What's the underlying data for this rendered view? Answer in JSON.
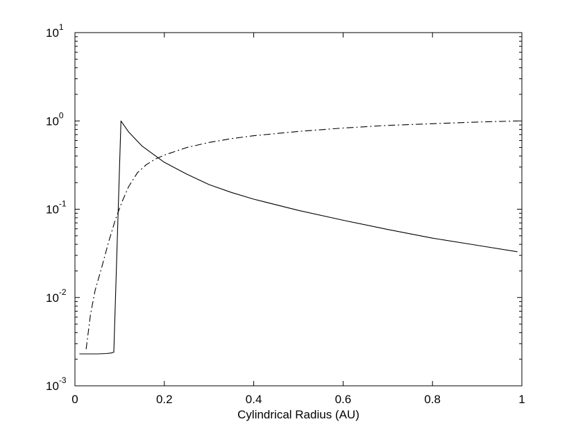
{
  "chart_data": {
    "type": "line",
    "title": "",
    "xlabel": "Cylindrical Radius (AU)",
    "ylabel": "",
    "xlim": [
      0,
      1
    ],
    "ylim": [
      0.001,
      10
    ],
    "yscale": "log",
    "grid": false,
    "legend": "none",
    "xticks": [
      0,
      0.2,
      0.4,
      0.6,
      0.8,
      1
    ],
    "xtick_labels": [
      "0",
      "0.2",
      "0.4",
      "0.6",
      "0.8",
      "1"
    ],
    "yticks": [
      0.001,
      0.01,
      0.1,
      1,
      10
    ],
    "ytick_labels": [
      {
        "base": "10",
        "exp": "-3"
      },
      {
        "base": "10",
        "exp": "-2"
      },
      {
        "base": "10",
        "exp": "-1"
      },
      {
        "base": "10",
        "exp": "0"
      },
      {
        "base": "10",
        "exp": "1"
      }
    ],
    "series": [
      {
        "style": "solid",
        "color": "#000000",
        "x": [
          0.01,
          0.03,
          0.05,
          0.07,
          0.08,
          0.087,
          0.103,
          0.12,
          0.15,
          0.2,
          0.25,
          0.3,
          0.35,
          0.4,
          0.5,
          0.6,
          0.7,
          0.8,
          0.9,
          0.99
        ],
        "y": [
          0.0023,
          0.0023,
          0.0023,
          0.00232,
          0.00235,
          0.0024,
          1.0,
          0.75,
          0.52,
          0.34,
          0.25,
          0.19,
          0.155,
          0.13,
          0.097,
          0.075,
          0.059,
          0.047,
          0.039,
          0.033
        ]
      },
      {
        "style": "dash-dot",
        "color": "#000000",
        "x": [
          0.025,
          0.035,
          0.045,
          0.06,
          0.075,
          0.09,
          0.105,
          0.12,
          0.14,
          0.16,
          0.18,
          0.2,
          0.25,
          0.3,
          0.35,
          0.4,
          0.5,
          0.6,
          0.7,
          0.8,
          0.9,
          0.99
        ],
        "y": [
          0.0026,
          0.0065,
          0.012,
          0.022,
          0.042,
          0.075,
          0.12,
          0.18,
          0.26,
          0.32,
          0.37,
          0.41,
          0.5,
          0.57,
          0.63,
          0.68,
          0.76,
          0.83,
          0.89,
          0.93,
          0.97,
          1.0
        ]
      }
    ]
  }
}
